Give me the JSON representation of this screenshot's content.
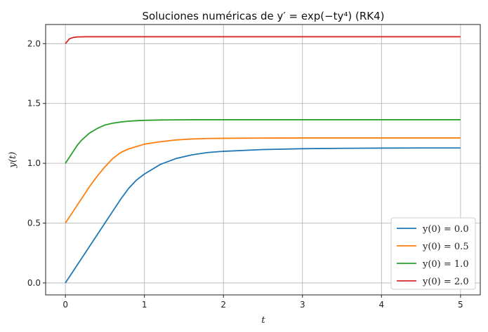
{
  "chart_data": {
    "type": "line",
    "title": "Soluciones numéricas de y′ = exp(−ty⁴) (RK4)",
    "xlabel": "t",
    "ylabel": "y(t)",
    "xlim": [
      -0.25,
      5.25
    ],
    "ylim": [
      -0.1,
      2.16
    ],
    "xticks": [
      0,
      1,
      2,
      3,
      4,
      5
    ],
    "xtick_labels": [
      "0",
      "1",
      "2",
      "3",
      "4",
      "5"
    ],
    "yticks": [
      0.0,
      0.5,
      1.0,
      1.5,
      2.0
    ],
    "ytick_labels": [
      "0.0",
      "0.5",
      "1.0",
      "1.5",
      "2.0"
    ],
    "grid": true,
    "legend_position": "lower-right",
    "x": [
      0,
      0.05,
      0.1,
      0.15,
      0.2,
      0.25,
      0.3,
      0.4,
      0.5,
      0.6,
      0.7,
      0.8,
      0.9,
      1.0,
      1.2,
      1.4,
      1.6,
      1.8,
      2.0,
      2.5,
      3.0,
      3.5,
      4.0,
      4.5,
      5.0
    ],
    "series": [
      {
        "name": "y(0) = 0.0",
        "color": "#1f77b4",
        "values": [
          0.0,
          0.05,
          0.1,
          0.15,
          0.2,
          0.25,
          0.3,
          0.4,
          0.5,
          0.6,
          0.7,
          0.79,
          0.86,
          0.91,
          0.99,
          1.04,
          1.07,
          1.09,
          1.1,
          1.115,
          1.122,
          1.125,
          1.127,
          1.128,
          1.128
        ]
      },
      {
        "name": "y(0) = 0.5",
        "color": "#ff7f0e",
        "values": [
          0.5,
          0.55,
          0.6,
          0.65,
          0.7,
          0.75,
          0.8,
          0.89,
          0.97,
          1.04,
          1.09,
          1.12,
          1.14,
          1.16,
          1.18,
          1.195,
          1.203,
          1.207,
          1.209,
          1.211,
          1.212,
          1.212,
          1.212,
          1.212,
          1.212
        ]
      },
      {
        "name": "y(0) = 1.0",
        "color": "#2ca02c",
        "values": [
          1.0,
          1.05,
          1.1,
          1.15,
          1.19,
          1.22,
          1.25,
          1.29,
          1.32,
          1.335,
          1.345,
          1.352,
          1.356,
          1.359,
          1.362,
          1.363,
          1.364,
          1.364,
          1.364,
          1.364,
          1.364,
          1.364,
          1.364,
          1.364,
          1.364
        ]
      },
      {
        "name": "y(0) = 2.0",
        "color": "#d62728",
        "values": [
          2.0,
          2.04,
          2.052,
          2.056,
          2.057,
          2.058,
          2.058,
          2.058,
          2.058,
          2.058,
          2.058,
          2.058,
          2.058,
          2.058,
          2.058,
          2.058,
          2.058,
          2.058,
          2.058,
          2.058,
          2.058,
          2.058,
          2.058,
          2.058,
          2.058
        ]
      }
    ]
  }
}
